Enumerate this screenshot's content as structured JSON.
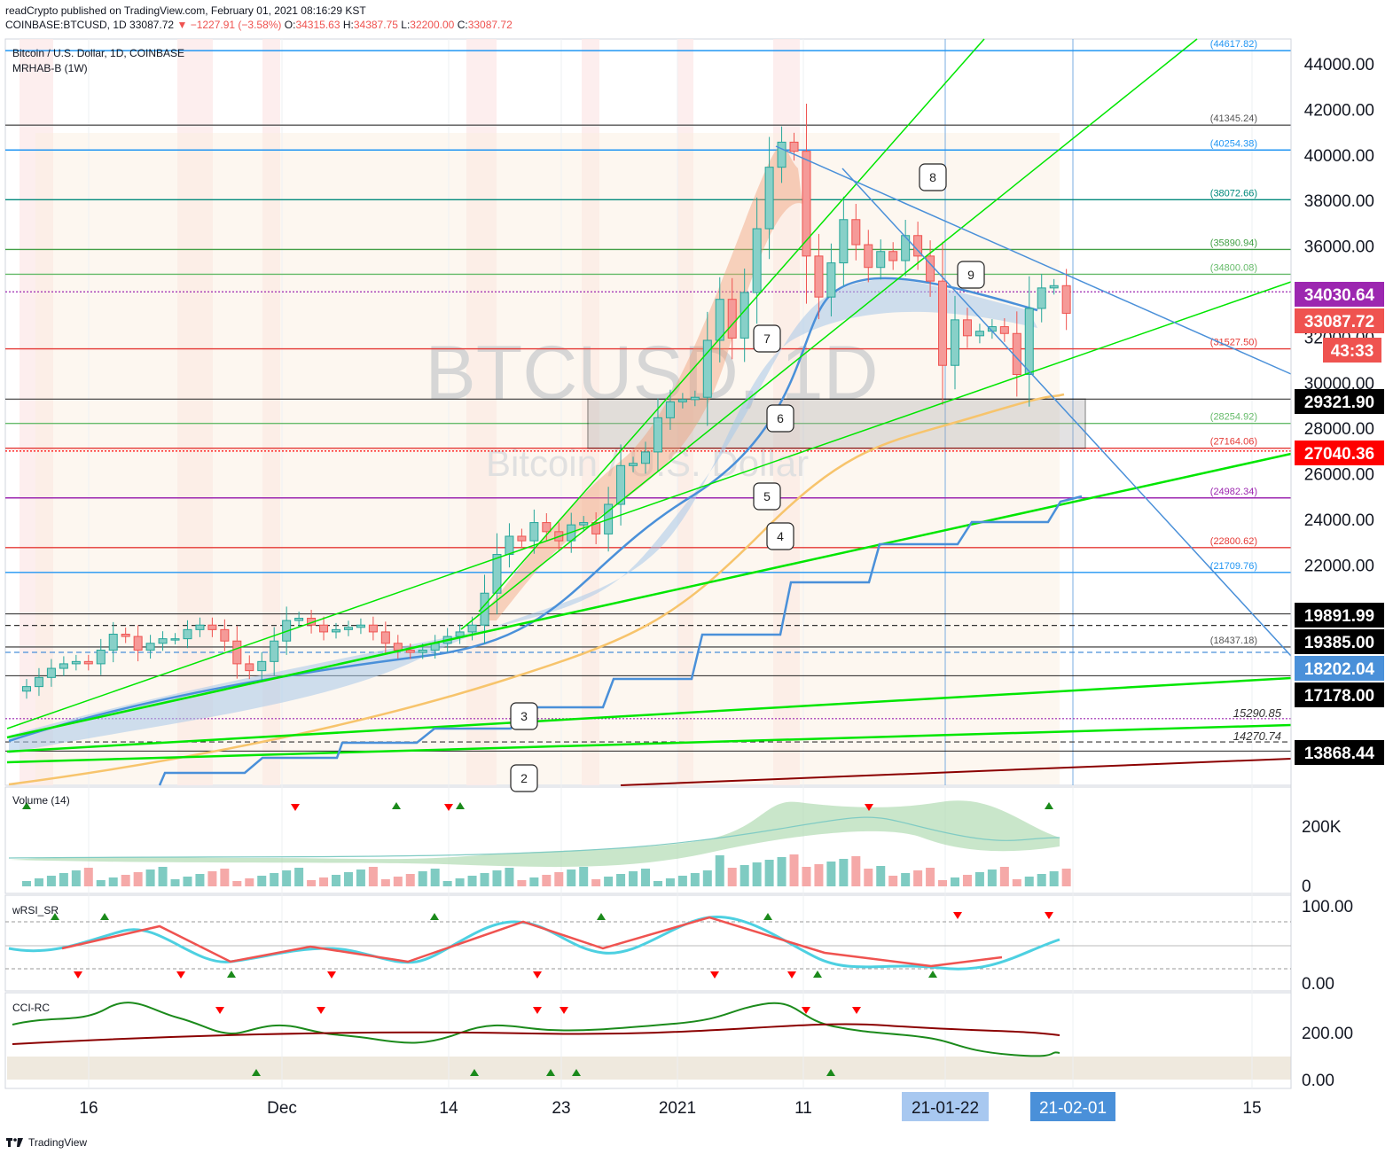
{
  "header": {
    "publisher_line": "readCrypto published on TradingView.com, February 01, 2021 08:16:29 KST",
    "symbol": "COINBASE:BTCUSD, 1D",
    "last": "33087.72",
    "change": "−1227.91 (−3.58%)",
    "o_label": "O:",
    "o_value": "34315.63",
    "h_label": "H:",
    "h_value": "34387.75",
    "l_label": "L:",
    "l_value": "32200.00",
    "c_label": "C:",
    "c_value": "33087.72"
  },
  "legend": {
    "title": "Bitcoin / U.S. Dollar, 1D, COINBASE",
    "study": "MRHAB-B (1W)"
  },
  "watermark": {
    "big": "BTCUSD, 1D",
    "small": "Bitcoin / U.S. Dollar"
  },
  "panes": {
    "volume": "Volume (14)",
    "wrsi": "wRSI_SR",
    "cci": "CCI-RC"
  },
  "footer": {
    "brand": "TradingView"
  },
  "colors": {
    "up": "#26a69a",
    "down": "#ef5350",
    "green_line": "#00e600",
    "blue_line": "#4a90d9",
    "orange_ma": "#f7c46c",
    "purple": "#9c27b0"
  },
  "chart_data": {
    "type": "candlestick",
    "title": "Bitcoin / U.S. Dollar, 1D, COINBASE",
    "ylim": [
      12000,
      46000
    ],
    "y_ticks": [
      "44000.00",
      "42000.00",
      "40000.00",
      "38000.00",
      "36000.00",
      "32000.00",
      "30000.00",
      "28000.00",
      "26000.00",
      "24000.00",
      "22000.00"
    ],
    "x_ticks": [
      "16",
      "Dec",
      "14",
      "23",
      "2021",
      "11",
      "21-01-22",
      "21-02-01",
      "15"
    ],
    "price_tags": [
      {
        "value": "34030.64",
        "color": "#9c27b0"
      },
      {
        "value": "33087.72",
        "color": "#ef5350"
      },
      {
        "value": "43:33",
        "color": "#ef5350"
      },
      {
        "value": "29321.90",
        "color": "#000000"
      },
      {
        "value": "27040.36",
        "color": "#ff0000"
      },
      {
        "value": "19891.99",
        "color": "#000000"
      },
      {
        "value": "19385.00",
        "color": "#000000"
      },
      {
        "value": "18202.04",
        "color": "#4a90d9"
      },
      {
        "value": "17178.00",
        "color": "#000000"
      },
      {
        "value": "13868.44",
        "color": "#000000"
      }
    ],
    "level_lines": [
      {
        "label": "(44617.82)",
        "value": 44617.82,
        "color": "#2196f3"
      },
      {
        "label": "(41345.24)",
        "value": 41345.24,
        "color": "#555555"
      },
      {
        "label": "(40254.38)",
        "value": 40254.38,
        "color": "#2196f3"
      },
      {
        "label": "(38072.66)",
        "value": 38072.66,
        "color": "#00897b"
      },
      {
        "label": "(35890.94)",
        "value": 35890.94,
        "color": "#43a047"
      },
      {
        "label": "(34800.08)",
        "value": 34800.08,
        "color": "#66bb6a"
      },
      {
        "label": "(31527.50)",
        "value": 31527.5,
        "color": "#e53935"
      },
      {
        "label": "(28254.92)",
        "value": 28254.92,
        "color": "#66bb6a"
      },
      {
        "label": "(27164.06)",
        "value": 27164.06,
        "color": "#e53935"
      },
      {
        "label": "(24982.34)",
        "value": 24982.34,
        "color": "#9c27b0"
      },
      {
        "label": "(22800.62)",
        "value": 22800.62,
        "color": "#e53935"
      },
      {
        "label": "(21709.76)",
        "value": 21709.76,
        "color": "#2196f3"
      },
      {
        "label": "(18437.18)",
        "value": 18437.18,
        "color": "#555555"
      }
    ],
    "left_labels": [
      {
        "label": "15290.85",
        "value": 15290.85
      },
      {
        "label": "14270.74",
        "value": 14270.74
      }
    ],
    "callouts": [
      "2",
      "3",
      "4",
      "5",
      "6",
      "7",
      "8",
      "9"
    ],
    "series": [
      {
        "name": "BTCUSD daily close (approx.)",
        "values": [
          16700,
          17100,
          17500,
          17700,
          17800,
          17700,
          18300,
          19000,
          18900,
          18300,
          18600,
          18800,
          18800,
          19200,
          19400,
          19200,
          18700,
          17700,
          17400,
          17800,
          18700,
          19600,
          19700,
          19400,
          19100,
          19200,
          19300,
          19400,
          19100,
          18600,
          18300,
          18200,
          18300,
          18600,
          18900,
          19100,
          19400,
          20800,
          22500,
          23300,
          23100,
          23900,
          23500,
          23100,
          23800,
          23900,
          23400,
          24700,
          26400,
          26500,
          27000,
          28500,
          29200,
          29300,
          29400,
          31900,
          33700,
          32000,
          34000,
          36800,
          39500,
          40600,
          40200,
          35600,
          33800,
          35300,
          37200,
          36100,
          35100,
          35800,
          35400,
          36500,
          35600,
          34500,
          30800,
          32800,
          32100,
          32300,
          32500,
          32200,
          30400,
          33300,
          34200,
          34300,
          33088
        ]
      }
    ],
    "volume_ylim": [
      0,
      300000
    ],
    "volume_ticks": [
      "200K",
      "0"
    ],
    "wrsi_ticks": [
      "100.00",
      "0.00"
    ],
    "cci_ticks": [
      "200.00",
      "0.00"
    ]
  }
}
